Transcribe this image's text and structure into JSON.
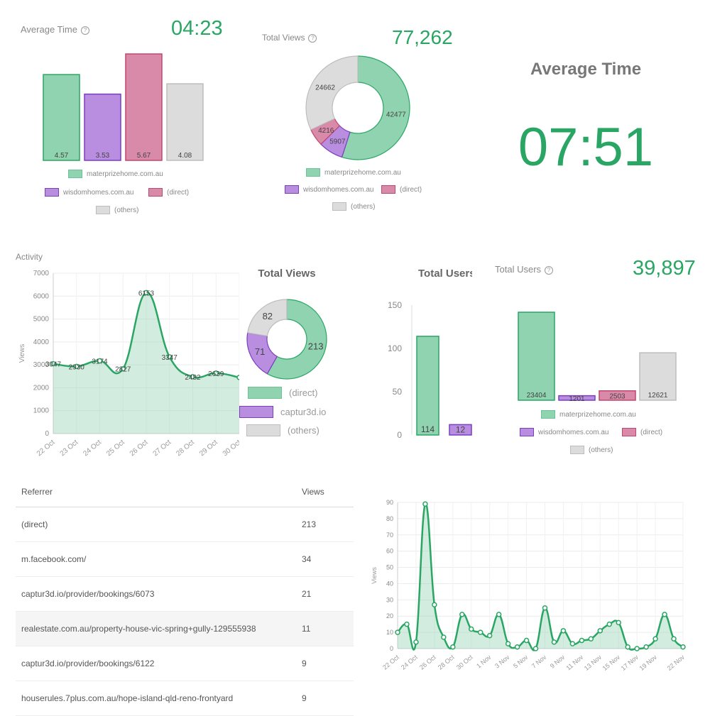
{
  "colors": {
    "green": "#2aa664",
    "green_fill": "#8fd3b0",
    "purple_fill": "#b98ee0",
    "purple_line": "#7b3fc0",
    "pink_fill": "#d98aa8",
    "pink_line": "#c0476f",
    "grey_fill": "#dcdcdc",
    "grey_line": "#bdbdbd"
  },
  "help_icon": "?",
  "avg_time_small": {
    "label": "Average Time",
    "value": "04:23"
  },
  "total_views_small": {
    "label": "Total Views",
    "value": "77,262"
  },
  "avg_time_big": {
    "title": "Average Time",
    "value": "07:51"
  },
  "total_users_small": {
    "label": "Total Users",
    "value": "39,897"
  },
  "activity": {
    "label": "Activity"
  },
  "total_views_mid": {
    "title": "Total Views"
  },
  "total_users_mid": {
    "title": "Total Users"
  },
  "legend_sites": {
    "a": "materprizehome.com.au",
    "b": "wisdomhomes.com.au",
    "c": "(direct)",
    "d": "(others)"
  },
  "legend_views": {
    "a": "(direct)",
    "b": "captur3d.io",
    "c": "(others)"
  },
  "table": {
    "headers": [
      "Referrer",
      "Views"
    ],
    "rows": [
      [
        "(direct)",
        "213"
      ],
      [
        "m.facebook.com/",
        "34"
      ],
      [
        "captur3d.io/provider/bookings/6073",
        "21"
      ],
      [
        "realestate.com.au/property-house-vic-spring+gully-129555938",
        "11"
      ],
      [
        "captur3d.io/provider/bookings/6122",
        "9"
      ],
      [
        "houserules.7plus.com.au/hope-island-qld-reno-frontyard",
        "9"
      ]
    ]
  },
  "chart_data": [
    {
      "type": "bar",
      "categories": [
        "materprizehome.com.au",
        "wisdomhomes.com.au",
        "(direct)",
        "(others)"
      ],
      "values": [
        4.57,
        3.53,
        5.67,
        4.08
      ],
      "labels": [
        "4.57",
        "3.53",
        "5.67",
        "4.08"
      ],
      "legend": "bottom"
    },
    {
      "type": "pie",
      "labels": [
        "materprizehome.com.au",
        "wisdomhomes.com.au",
        "(direct)",
        "(others)"
      ],
      "values": [
        42477,
        5907,
        4216,
        24662
      ],
      "value_labels": [
        "42477",
        "5907",
        "4216",
        "24662"
      ],
      "legend": "bottom"
    },
    {
      "type": "area",
      "x": [
        "22 Oct",
        "23 Oct",
        "24 Oct",
        "25 Oct",
        "26 Oct",
        "27 Oct",
        "28 Oct",
        "29 Oct",
        "30 Oct"
      ],
      "values": [
        3047,
        2930,
        3174,
        2827,
        6153,
        3347,
        2482,
        2639,
        2450
      ],
      "value_labels": [
        "3047",
        "2930",
        "3174",
        "2827",
        "6153",
        "3347",
        "2482",
        "2639",
        ""
      ],
      "ylabel": "Views",
      "ylim": [
        0,
        7000
      ],
      "yticks": [
        "0",
        "1000",
        "2000",
        "3000",
        "4000",
        "5000",
        "6000",
        "7000"
      ],
      "grid": true
    },
    {
      "type": "pie",
      "labels": [
        "(direct)",
        "captur3d.io",
        "(others)"
      ],
      "values": [
        213,
        71,
        82
      ],
      "value_labels": [
        "213",
        "71",
        "82"
      ],
      "legend": "bottom"
    },
    {
      "type": "bar",
      "categories": [
        "(direct)",
        "captur3d.io"
      ],
      "values": [
        114,
        12
      ],
      "labels": [
        "114",
        "12"
      ],
      "ylim": [
        0,
        150
      ],
      "yticks": [
        "0",
        "50",
        "100",
        "150"
      ]
    },
    {
      "type": "bar",
      "categories": [
        "materprizehome.com.au",
        "wisdomhomes.com.au",
        "(direct)",
        "(others)"
      ],
      "values": [
        23404,
        1201,
        2503,
        12621
      ],
      "labels": [
        "23404",
        "1201",
        "2503",
        "12621"
      ],
      "legend": "bottom"
    },
    {
      "type": "area",
      "x": [
        "22 Oct",
        "23 Oct",
        "24 Oct",
        "25 Oct",
        "26 Oct",
        "27 Oct",
        "28 Oct",
        "29 Oct",
        "30 Oct",
        "31 Oct",
        "1 Nov",
        "2 Nov",
        "3 Nov",
        "4 Nov",
        "5 Nov",
        "6 Nov",
        "7 Nov",
        "8 Nov",
        "9 Nov",
        "10 Nov",
        "11 Nov",
        "12 Nov",
        "13 Nov",
        "14 Nov",
        "15 Nov",
        "16 Nov",
        "17 Nov",
        "18 Nov",
        "19 Nov",
        "20 Nov",
        "21 Nov",
        "22 Nov"
      ],
      "values": [
        10,
        15,
        4,
        89,
        27,
        7,
        1,
        21,
        12,
        10,
        8,
        21,
        3,
        1,
        5,
        0,
        25,
        4,
        11,
        3,
        5,
        6,
        11,
        15,
        16,
        1,
        0,
        1,
        6,
        21,
        6,
        1
      ],
      "tick_labels": [
        "22 Oct",
        "24 Oct",
        "26 Oct",
        "28 Oct",
        "30 Oct",
        "1 Nov",
        "3 Nov",
        "5 Nov",
        "7 Nov",
        "9 Nov",
        "11 Nov",
        "13 Nov",
        "15 Nov",
        "17 Nov",
        "19 Nov",
        "22 Nov"
      ],
      "ylabel": "Views",
      "ylim": [
        0,
        90
      ],
      "yticks": [
        "0",
        "10",
        "20",
        "30",
        "40",
        "50",
        "60",
        "70",
        "80",
        "90"
      ],
      "grid": true
    }
  ]
}
